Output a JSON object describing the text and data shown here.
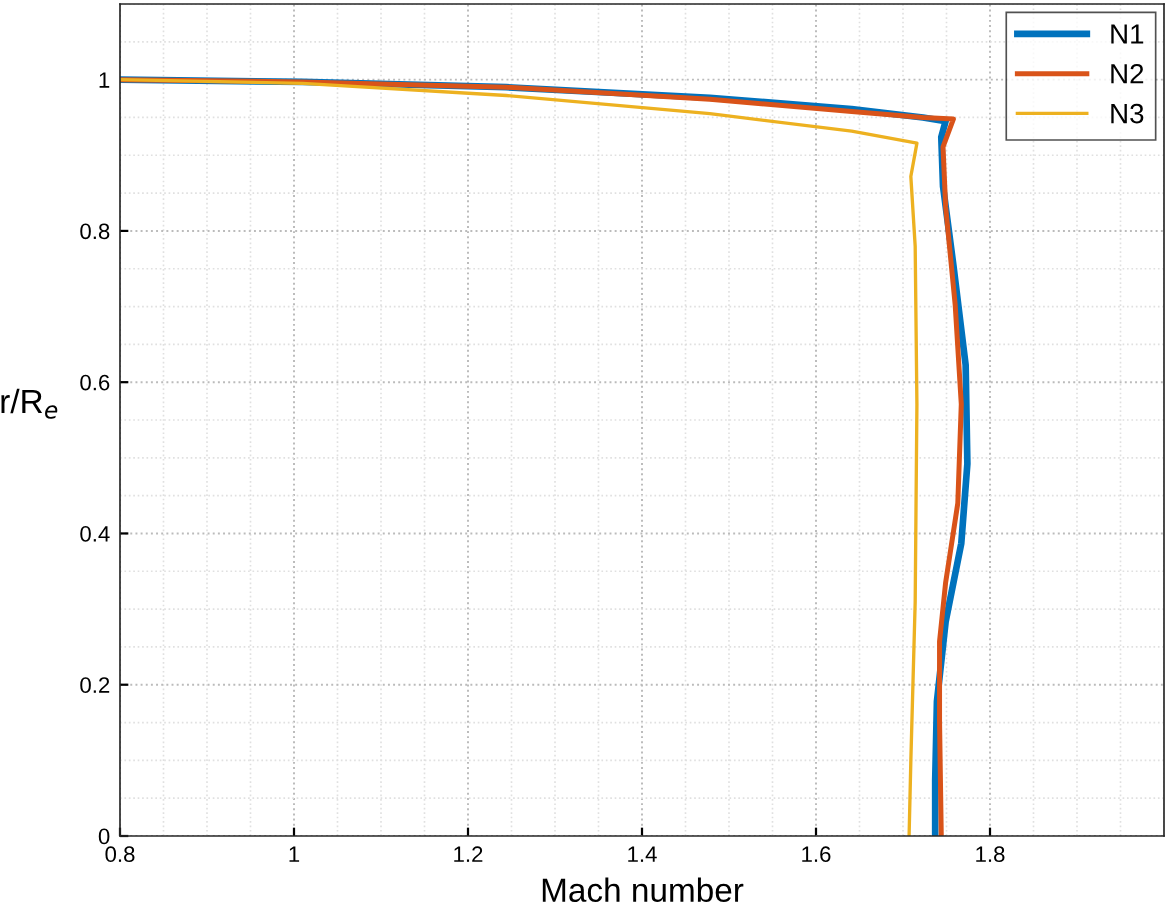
{
  "chart_data": {
    "type": "line",
    "xlabel": "Mach number",
    "ylabel": "r/R$_{e}$",
    "xlim": [
      0.8,
      2.0
    ],
    "ylim": [
      0,
      1.1
    ],
    "xticks": [
      0.8,
      1,
      1.2,
      1.4,
      1.6,
      1.8
    ],
    "yticks": [
      0,
      0.2,
      0.4,
      0.6,
      0.8,
      1
    ],
    "grid": true,
    "legend": "top right",
    "marker": "none",
    "line_style": "solid",
    "series": [
      {
        "name": "N1",
        "color": "#0072bd",
        "x": [
          0.8,
          1.01,
          1.244,
          1.478,
          1.641,
          1.723,
          1.749,
          1.744,
          1.746,
          1.758,
          1.772,
          1.774,
          1.767,
          1.749,
          1.739,
          1.737,
          1.737
        ],
        "values": [
          1.0,
          0.997,
          0.99,
          0.976,
          0.961,
          0.95,
          0.945,
          0.924,
          0.859,
          0.754,
          0.623,
          0.492,
          0.387,
          0.283,
          0.178,
          0.073,
          0
        ]
      },
      {
        "name": "N2",
        "color": "#d95319",
        "x": [
          0.8,
          1.01,
          1.244,
          1.478,
          1.641,
          1.723,
          1.758,
          1.746,
          1.749,
          1.76,
          1.767,
          1.763,
          1.749,
          1.742,
          1.742,
          1.744
        ],
        "values": [
          1.0,
          0.997,
          0.99,
          0.974,
          0.958,
          0.95,
          0.948,
          0.911,
          0.832,
          0.702,
          0.571,
          0.44,
          0.335,
          0.257,
          0.152,
          0
        ]
      },
      {
        "name": "N3",
        "color": "#edb120",
        "x": [
          0.8,
          1.01,
          1.244,
          1.478,
          1.641,
          1.716,
          1.709,
          1.714,
          1.716,
          1.714,
          1.709,
          1.707
        ],
        "values": [
          1.0,
          0.995,
          0.979,
          0.955,
          0.932,
          0.916,
          0.872,
          0.78,
          0.571,
          0.309,
          0.099,
          0
        ]
      }
    ]
  }
}
